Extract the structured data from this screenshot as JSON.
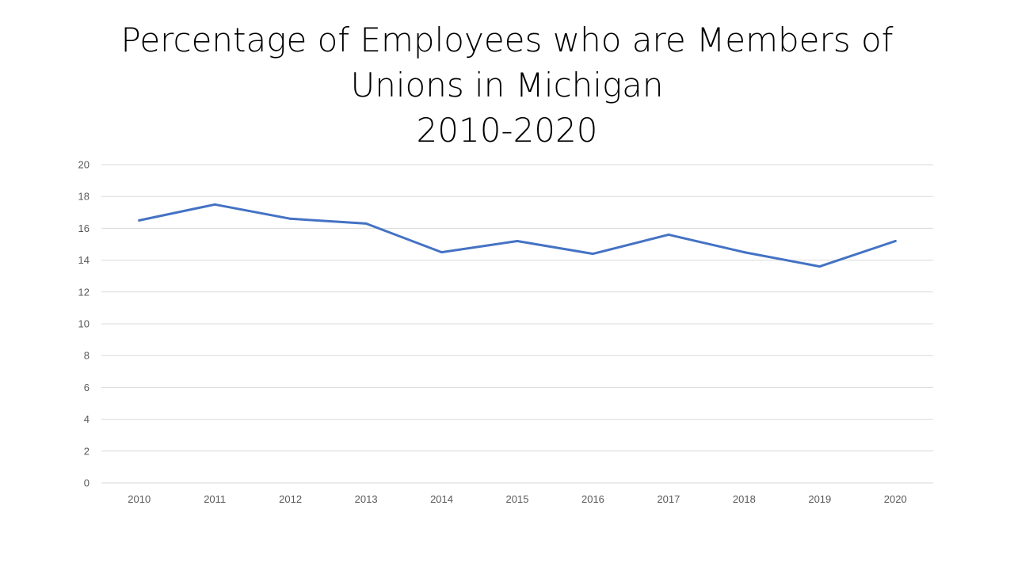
{
  "title": {
    "line1": "Percentage of Employees who are Members of",
    "line2": "Unions in Michigan",
    "line3": "2010-2020"
  },
  "colors": {
    "series": "#4472C4",
    "grid": "#D9D9D9",
    "tick_text": "#595959"
  },
  "chart_data": {
    "type": "line",
    "title": "Percentage of Employees who are Members of Unions in Michigan 2010-2020",
    "categories": [
      "2010",
      "2011",
      "2012",
      "2013",
      "2014",
      "2015",
      "2016",
      "2017",
      "2018",
      "2019",
      "2020"
    ],
    "series": [
      {
        "values": [
          16.5,
          17.5,
          16.6,
          16.3,
          14.5,
          15.2,
          14.4,
          15.6,
          14.5,
          13.6,
          15.2
        ]
      }
    ],
    "ylim": [
      0,
      20
    ],
    "yticks": [
      0,
      2,
      4,
      6,
      8,
      10,
      12,
      14,
      16,
      18,
      20
    ],
    "xlabel": "",
    "ylabel": "",
    "grid": true,
    "legend": "none"
  }
}
